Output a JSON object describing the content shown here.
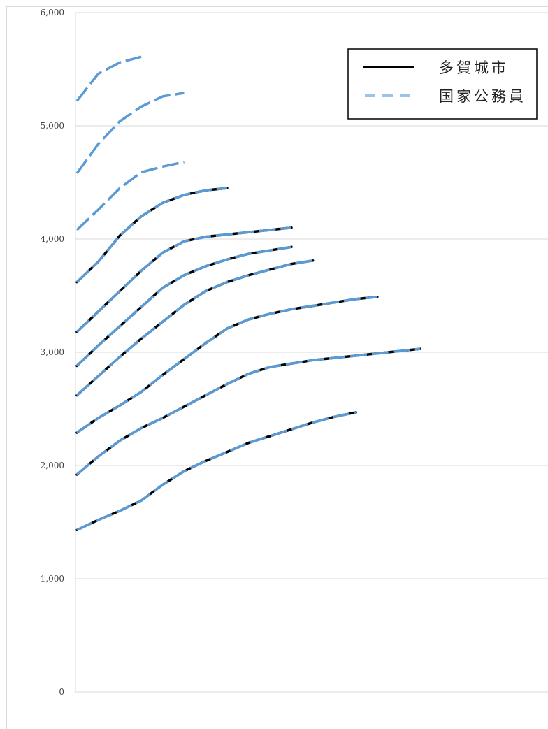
{
  "chart_data": {
    "type": "line",
    "title": "",
    "xlabel": "",
    "ylabel": "",
    "ylim": [
      0,
      6000
    ],
    "yticks": [
      0,
      1000,
      2000,
      3000,
      4000,
      5000,
      6000
    ],
    "ytick_labels": [
      "0",
      "1,000",
      "2,000",
      "3,000",
      "4,000",
      "5,000",
      "6,000"
    ],
    "grid": "horizontal",
    "legend_position": "top-right",
    "colors": {
      "tagajo": "#000000",
      "national": "#5b9bd5"
    },
    "legend": [
      {
        "label": "多賀城市",
        "style": "solid",
        "color": "#000000"
      },
      {
        "label": "国家公務員",
        "style": "dashed",
        "color": "#9dc3e6"
      }
    ],
    "series": [
      {
        "name": "多賀城市",
        "values": [
          1430,
          1520,
          1600,
          1690,
          1830,
          1950,
          2040,
          2120,
          2200,
          2260,
          2320,
          2380,
          2430,
          2470
        ]
      },
      {
        "name": "国家公務員",
        "values": [
          1430,
          1520,
          1600,
          1690,
          1830,
          1950,
          2040,
          2120,
          2200,
          2260,
          2320,
          2380,
          2430,
          2470
        ]
      },
      {
        "name": "多賀城市",
        "values": [
          1920,
          2080,
          2220,
          2330,
          2420,
          2520,
          2620,
          2720,
          2810,
          2870,
          2900,
          2930,
          2950,
          2970,
          2990,
          3010,
          3030
        ]
      },
      {
        "name": "国家公務員",
        "values": [
          1920,
          2080,
          2220,
          2330,
          2420,
          2520,
          2620,
          2720,
          2810,
          2870,
          2900,
          2930,
          2950,
          2970,
          2990,
          3010,
          3030
        ]
      },
      {
        "name": "多賀城市",
        "values": [
          2290,
          2420,
          2530,
          2650,
          2800,
          2940,
          3080,
          3210,
          3290,
          3340,
          3380,
          3410,
          3440,
          3470,
          3490
        ]
      },
      {
        "name": "国家公務員",
        "values": [
          2290,
          2420,
          2530,
          2650,
          2800,
          2940,
          3080,
          3210,
          3290,
          3340,
          3380,
          3410,
          3440,
          3470,
          3490
        ]
      },
      {
        "name": "多賀城市",
        "values": [
          2620,
          2790,
          2960,
          3120,
          3270,
          3420,
          3540,
          3620,
          3680,
          3730,
          3780,
          3810
        ]
      },
      {
        "name": "国家公務員",
        "values": [
          2620,
          2790,
          2960,
          3120,
          3270,
          3420,
          3540,
          3620,
          3680,
          3730,
          3780,
          3810
        ]
      },
      {
        "name": "多賀城市",
        "values": [
          2880,
          3060,
          3230,
          3400,
          3570,
          3680,
          3760,
          3820,
          3870,
          3900,
          3930
        ]
      },
      {
        "name": "国家公務員",
        "values": [
          2880,
          3060,
          3230,
          3400,
          3570,
          3680,
          3760,
          3820,
          3870,
          3900,
          3930
        ]
      },
      {
        "name": "多賀城市",
        "values": [
          3180,
          3360,
          3540,
          3720,
          3880,
          3980,
          4020,
          4040,
          4060,
          4080,
          4100
        ]
      },
      {
        "name": "国家公務員",
        "values": [
          3180,
          3360,
          3540,
          3720,
          3880,
          3980,
          4020,
          4040,
          4060,
          4080,
          4100
        ]
      },
      {
        "name": "多賀城市",
        "values": [
          3620,
          3800,
          4030,
          4200,
          4320,
          4390,
          4430,
          4450
        ]
      },
      {
        "name": "国家公務員",
        "values": [
          3620,
          3800,
          4030,
          4200,
          4320,
          4390,
          4430,
          4450
        ]
      },
      {
        "name": "国家公務員",
        "values": [
          4080,
          4260,
          4450,
          4590,
          4640,
          4680
        ]
      },
      {
        "name": "国家公務員",
        "values": [
          4580,
          4840,
          5040,
          5170,
          5260,
          5290
        ]
      },
      {
        "name": "国家公務員",
        "values": [
          5220,
          5460,
          5560,
          5610
        ]
      }
    ]
  }
}
